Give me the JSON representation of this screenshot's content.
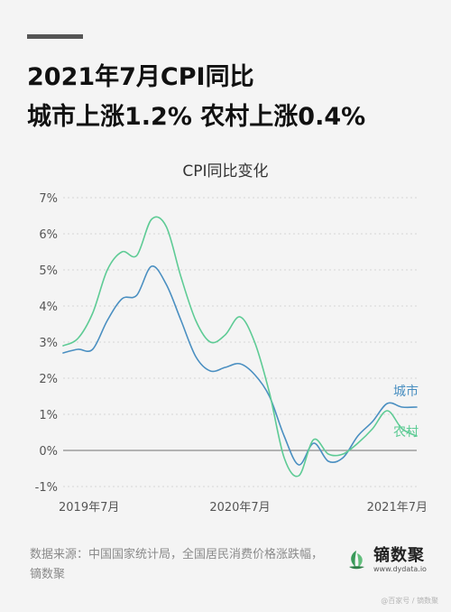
{
  "headline": {
    "line1": "2021年7月CPI同比",
    "line2": "城市上涨1.2% 农村上涨0.4%"
  },
  "footer": {
    "source": "数据来源：中国国家统计局，全国居民消费价格涨跌幅，镝数聚",
    "brand_name": "镝数聚",
    "brand_url": "www.dydata.io",
    "watermark": "@百家号 / 镝数聚"
  },
  "colors": {
    "city": "#4a8fc1",
    "rural": "#5ecb95",
    "zero_line": "#8a8a8a",
    "grid": "#d6d6d6",
    "brand_green": "#3a9a5a"
  },
  "chart_data": {
    "type": "line",
    "title": "CPI同比变化",
    "xlabel": "",
    "ylabel": "",
    "ylim": [
      -1,
      7
    ],
    "yticks": [
      -1,
      0,
      1,
      2,
      3,
      4,
      5,
      6,
      7
    ],
    "ytick_labels": [
      "-1%",
      "0%",
      "1%",
      "2%",
      "3%",
      "4%",
      "5%",
      "6%",
      "7%"
    ],
    "x": [
      "2019-07",
      "2019-08",
      "2019-09",
      "2019-10",
      "2019-11",
      "2019-12",
      "2020-01",
      "2020-02",
      "2020-03",
      "2020-04",
      "2020-05",
      "2020-06",
      "2020-07",
      "2020-08",
      "2020-09",
      "2020-10",
      "2020-11",
      "2020-12",
      "2021-01",
      "2021-02",
      "2021-03",
      "2021-04",
      "2021-05",
      "2021-06",
      "2021-07"
    ],
    "xtick_labels": [
      {
        "x": "2019-07",
        "label": "2019年7月"
      },
      {
        "x": "2020-07",
        "label": "2020年7月"
      },
      {
        "x": "2021-07",
        "label": "2021年7月"
      }
    ],
    "grid": "horizontal",
    "series": [
      {
        "name": "城市",
        "color": "#4a8fc1",
        "values": [
          2.7,
          2.8,
          2.8,
          3.6,
          4.2,
          4.3,
          5.1,
          4.6,
          3.6,
          2.6,
          2.2,
          2.3,
          2.4,
          2.1,
          1.5,
          0.4,
          -0.4,
          0.2,
          -0.3,
          -0.2,
          0.4,
          0.8,
          1.3,
          1.2,
          1.2
        ]
      },
      {
        "name": "农村",
        "color": "#5ecb95",
        "values": [
          2.9,
          3.1,
          3.8,
          5.0,
          5.5,
          5.4,
          6.4,
          6.2,
          4.8,
          3.6,
          3.0,
          3.2,
          3.7,
          3.0,
          1.6,
          -0.2,
          -0.7,
          0.3,
          -0.1,
          -0.1,
          0.2,
          0.6,
          1.1,
          0.6,
          0.4
        ]
      }
    ]
  }
}
